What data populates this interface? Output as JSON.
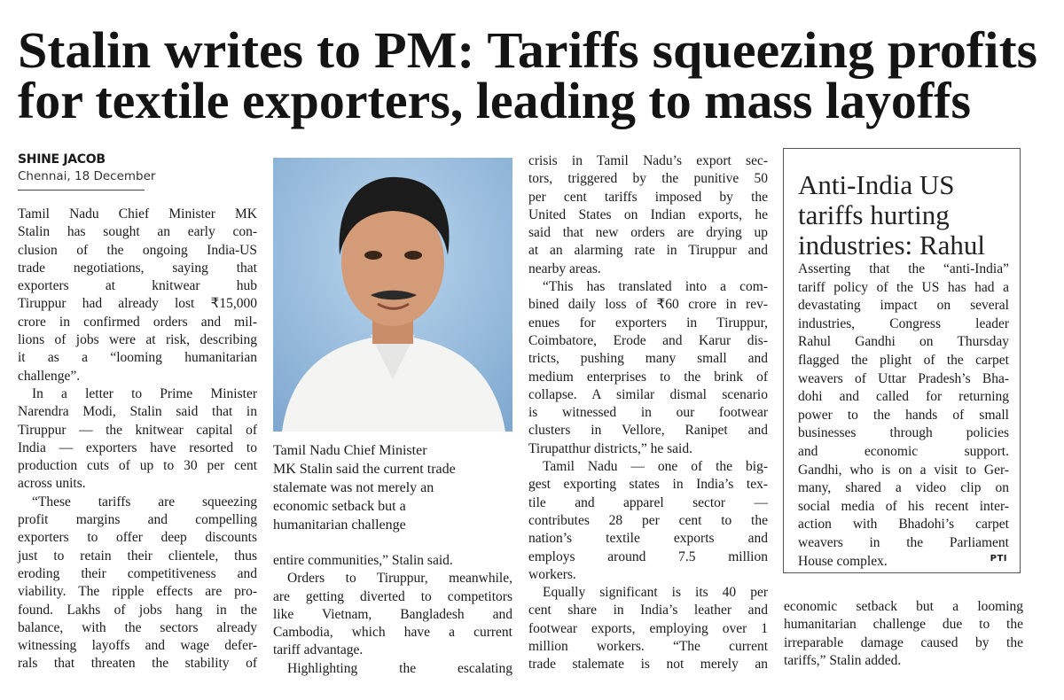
{
  "headline": {
    "lines": [
      "Stalin writes to PM: Tariffs squeezing profits",
      "for textile exporters, leading to mass layoffs"
    ]
  },
  "byline": {
    "author": "SHINE JACOB",
    "dateline": "Chennai, 18 December"
  },
  "photo": {
    "caption": [
      "Tamil Nadu Chief Minister",
      "MK Stalin said the current trade",
      "stalemate was not merely an",
      "economic setback but a",
      "humanitarian challenge"
    ]
  },
  "columns": [
    {
      "paragraphs": [
        [
          "Tamil Nadu Chief Minister MK",
          "Stalin has sought an early con-",
          "clusion of the ongoing India-US",
          "trade negotiations, saying that",
          "exporters at knitwear hub",
          "Tiruppur had already lost ₹15,000",
          "crore in confirmed orders and mil-",
          "lions of jobs were at risk, describing",
          "it as a “looming humanitarian",
          "challenge”."
        ],
        [
          "In a letter to Prime Minister",
          "Narendra Modi, Stalin said that in",
          "Tiruppur — the knitwear capital of",
          "India — exporters have resorted to",
          "production cuts of up to 30 per cent",
          "across units."
        ],
        [
          "“These tariffs are squeezing",
          "profit margins and compelling",
          "exporters to offer deep discounts",
          "just to retain their clientele, thus",
          "eroding their competitiveness and",
          "viability. The ripple effects are pro-",
          "found. Lakhs of jobs hang in the",
          "balance, with the sectors already",
          "witnessing layoffs and wage defer-",
          "rals that threaten the stability of"
        ]
      ]
    },
    {
      "paragraphs": [
        [
          "entire communities,” Stalin said."
        ],
        [
          "Orders to Tiruppur, meanwhile,",
          "are getting diverted to competitors",
          "like Vietnam, Bangladesh and",
          "Cambodia, which have a current",
          "tariff advantage."
        ],
        [
          "Highlighting the escalating"
        ]
      ]
    },
    {
      "paragraphs": [
        [
          "crisis in Tamil Nadu’s export sec-",
          "tors, triggered by the punitive 50",
          "per cent tariffs imposed by the",
          "United States on Indian exports, he",
          "said that new orders are drying up",
          "at an alarming rate in Tiruppur and",
          "nearby areas."
        ],
        [
          "“This has translated into a com-",
          "bined daily loss of ₹60 crore in rev-",
          "enues for exporters in Tiruppur,",
          "Coimbatore, Erode and Karur dis-",
          "tricts, pushing many small and",
          "medium enterprises to the brink of",
          "collapse. A similar dismal scenario",
          "is witnessed in our footwear",
          "clusters in Vellore, Ranipet and",
          "Tirupatthur districts,” he said."
        ],
        [
          "Tamil Nadu — one of the big-",
          "gest exporting states in India’s tex-",
          "tile and apparel sector —",
          "contributes 28 per cent to the",
          "nation’s textile exports and",
          "employs around 7.5 million",
          "workers."
        ],
        [
          "Equally significant is its 40 per",
          "cent share in India’s leather and",
          "footwear exports, employing over 1",
          "million workers. “The current",
          "trade stalemate is not merely an"
        ]
      ]
    },
    {
      "paragraphs": [
        [
          "economic setback but a looming",
          "humanitarian challenge due to the",
          "irreparable damage caused by the",
          "tariffs,” Stalin added."
        ]
      ]
    }
  ],
  "sidebar": {
    "title": [
      "Anti-India US",
      "tariffs hurting",
      "industries: Rahul"
    ],
    "paragraphs": [
      [
        "Asserting that the “anti-India”",
        "tariff policy of the US has had a",
        "devastating impact on several",
        "industries, Congress leader",
        "Rahul Gandhi on Thursday",
        "flagged the plight of the carpet",
        "weavers of Uttar Pradesh’s Bha-",
        "dohi and called for returning",
        "power to the hands of small",
        "businesses through policies",
        "and economic support.",
        "Gandhi, who is on a visit to Ger-",
        "many, shared a video clip on",
        "social media of his recent inter-",
        "action with Bhadohi’s carpet",
        "weavers in the Parliament",
        "House complex."
      ]
    ],
    "credit": "PTI"
  }
}
